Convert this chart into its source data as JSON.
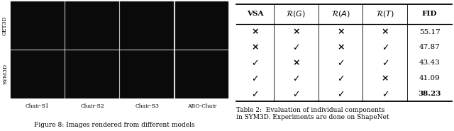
{
  "left_caption": "Figure 8: Images rendered from different models",
  "right_caption": "Table 2:  Evaluation of individual components\nin SYM3D. Experiments are done on ShapeNet",
  "col_labels": [
    "VSA",
    "\\mathcal{R}(G)",
    "\\mathcal{R}(A)",
    "\\mathcal{R}(T)",
    "FID"
  ],
  "rows": [
    [
      "x",
      "x",
      "x",
      "x",
      "55.17"
    ],
    [
      "x",
      "c",
      "x",
      "c",
      "47.87"
    ],
    [
      "c",
      "x",
      "c",
      "c",
      "43.43"
    ],
    [
      "c",
      "c",
      "c",
      "x",
      "41.09"
    ],
    [
      "c",
      "c",
      "c",
      "c",
      "38.23"
    ]
  ],
  "fid_bold_row": 4,
  "row_labels_left": [
    "GET3D",
    "SYM3D"
  ],
  "col_names_left": [
    "Chair-S1",
    "Chair-S2",
    "Chair-S3",
    "ABO-Chair"
  ],
  "bg_color": "#ffffff",
  "img_grid_colors": [
    "#111111",
    "#111111",
    "#111111",
    "#111111",
    "#111111",
    "#111111",
    "#111111",
    "#111111"
  ]
}
